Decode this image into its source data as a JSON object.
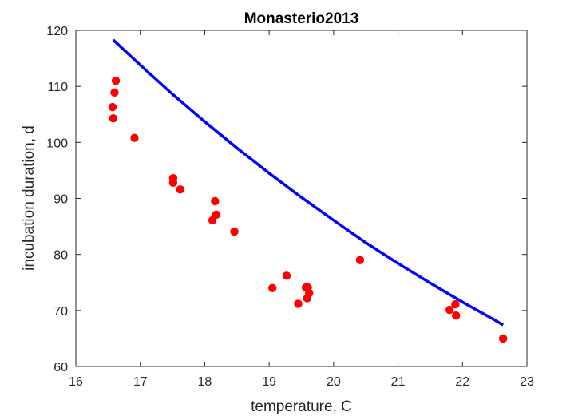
{
  "chart_data": {
    "type": "scatter",
    "title": "Monasterio2013",
    "xlabel": "temperature, C",
    "ylabel": "incubation duration, d",
    "xlim": [
      16,
      23
    ],
    "ylim": [
      60,
      120
    ],
    "xticks": [
      "16",
      "17",
      "18",
      "19",
      "20",
      "21",
      "22",
      "23"
    ],
    "yticks": [
      "60",
      "70",
      "80",
      "90",
      "100",
      "110",
      "120"
    ],
    "grid": false,
    "series": [
      {
        "kind": "points",
        "color": "#ff0000",
        "points": [
          [
            16.62,
            111.0
          ],
          [
            16.6,
            108.9
          ],
          [
            16.57,
            106.3
          ],
          [
            16.58,
            104.3
          ],
          [
            16.91,
            100.8
          ],
          [
            17.51,
            93.6
          ],
          [
            17.51,
            92.8
          ],
          [
            17.62,
            91.6
          ],
          [
            18.16,
            89.5
          ],
          [
            18.18,
            87.1
          ],
          [
            18.12,
            86.1
          ],
          [
            18.46,
            84.1
          ],
          [
            19.05,
            74.0
          ],
          [
            19.27,
            76.2
          ],
          [
            19.45,
            71.2
          ],
          [
            19.57,
            74.1
          ],
          [
            19.6,
            74.1
          ],
          [
            19.62,
            73.1
          ],
          [
            19.59,
            72.2
          ],
          [
            20.41,
            79.0
          ],
          [
            21.8,
            70.1
          ],
          [
            21.89,
            71.1
          ],
          [
            21.9,
            69.1
          ],
          [
            22.63,
            65.0
          ]
        ]
      },
      {
        "kind": "curve",
        "color": "#0000ff",
        "points": [
          [
            16.58,
            118.3
          ],
          [
            17.0,
            113.8
          ],
          [
            17.5,
            108.6
          ],
          [
            18.0,
            103.7
          ],
          [
            18.5,
            99.0
          ],
          [
            19.0,
            94.5
          ],
          [
            19.5,
            90.2
          ],
          [
            20.0,
            86.1
          ],
          [
            20.5,
            82.1
          ],
          [
            21.0,
            78.4
          ],
          [
            21.5,
            74.9
          ],
          [
            22.0,
            71.5
          ],
          [
            22.5,
            68.3
          ],
          [
            22.63,
            67.4
          ]
        ]
      }
    ]
  }
}
